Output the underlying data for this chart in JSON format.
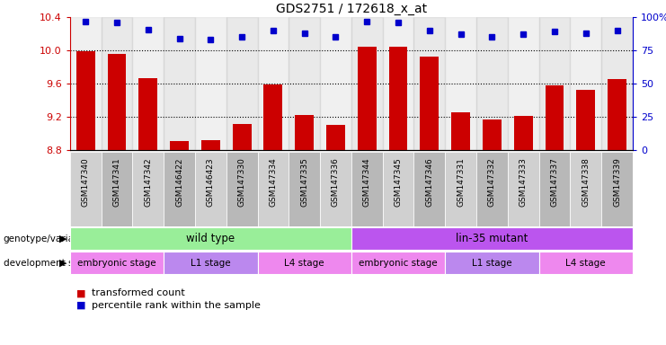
{
  "title": "GDS2751 / 172618_x_at",
  "samples": [
    "GSM147340",
    "GSM147341",
    "GSM147342",
    "GSM146422",
    "GSM146423",
    "GSM147330",
    "GSM147334",
    "GSM147335",
    "GSM147336",
    "GSM147344",
    "GSM147345",
    "GSM147346",
    "GSM147331",
    "GSM147332",
    "GSM147333",
    "GSM147337",
    "GSM147338",
    "GSM147339"
  ],
  "bar_values": [
    9.99,
    9.96,
    9.67,
    8.91,
    8.92,
    9.11,
    9.59,
    9.22,
    9.1,
    10.05,
    10.04,
    9.93,
    9.26,
    9.17,
    9.21,
    9.58,
    9.53,
    9.65
  ],
  "percentile_values": [
    97,
    96,
    91,
    84,
    83,
    85,
    90,
    88,
    85,
    97,
    96,
    90,
    87,
    85,
    87,
    89,
    88,
    90
  ],
  "bar_color": "#cc0000",
  "percentile_color": "#0000cc",
  "ylim_left": [
    8.8,
    10.4
  ],
  "ylim_right": [
    0,
    100
  ],
  "yticks_left": [
    8.8,
    9.2,
    9.6,
    10.0,
    10.4
  ],
  "yticks_right": [
    0,
    25,
    50,
    75,
    100
  ],
  "ytick_labels_right": [
    "0",
    "25",
    "50",
    "75",
    "100%"
  ],
  "grid_values": [
    9.2,
    9.6,
    10.0
  ],
  "genotype_row": [
    {
      "start": 0,
      "end": 9,
      "label": "wild type",
      "color": "#99ee99"
    },
    {
      "start": 9,
      "end": 18,
      "label": "lin-35 mutant",
      "color": "#bb55ee"
    }
  ],
  "dev_stage_row": [
    {
      "label": "embryonic stage",
      "start": 0,
      "end": 3,
      "color": "#ee88ee"
    },
    {
      "label": "L1 stage",
      "start": 3,
      "end": 6,
      "color": "#bb88ee"
    },
    {
      "label": "L4 stage",
      "start": 6,
      "end": 9,
      "color": "#ee88ee"
    },
    {
      "label": "embryonic stage",
      "start": 9,
      "end": 12,
      "color": "#ee88ee"
    },
    {
      "label": "L1 stage",
      "start": 12,
      "end": 15,
      "color": "#bb88ee"
    },
    {
      "label": "L4 stage",
      "start": 15,
      "end": 18,
      "color": "#ee88ee"
    }
  ],
  "background_color": "#ffffff",
  "tick_bg_even": "#d0d0d0",
  "tick_bg_odd": "#b8b8b8"
}
